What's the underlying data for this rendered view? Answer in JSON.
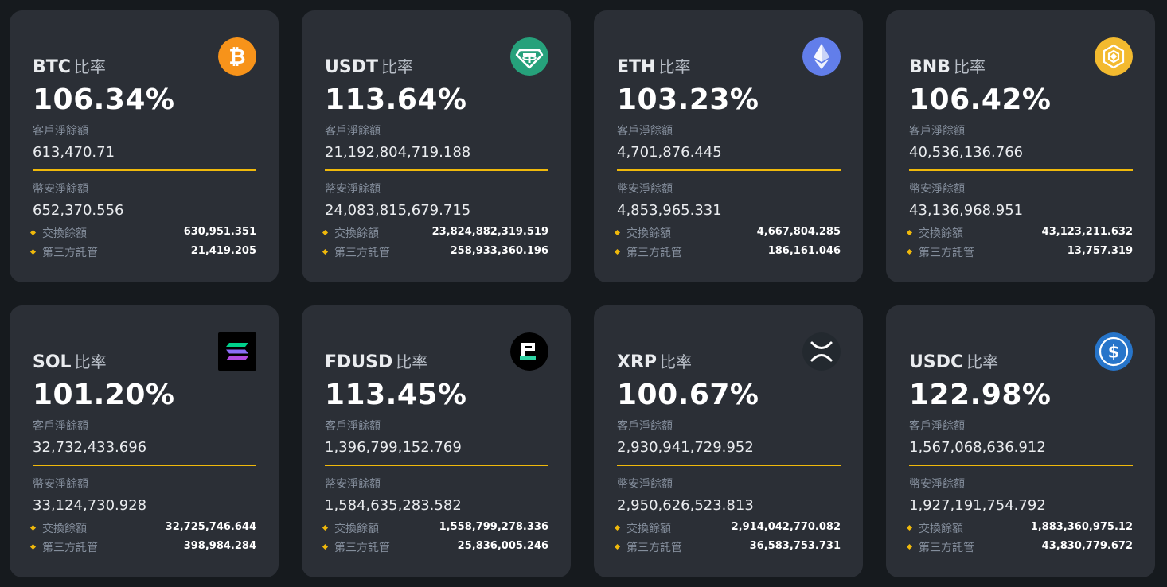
{
  "labels": {
    "ratio_suffix": "比率",
    "customer_net_balance": "客戶淨餘額",
    "binance_net_balance": "幣安淨餘額",
    "exchange_balance": "交換餘額",
    "third_party_custody": "第三方託管"
  },
  "colors": {
    "background": "#161a1e",
    "card": "#2b2f36",
    "accent": "#f0b90b"
  },
  "cards": [
    {
      "symbol": "BTC",
      "icon": "bitcoin-icon",
      "ratio": "106.34%",
      "customer_net_balance": "613,470.71",
      "binance_net_balance": "652,370.556",
      "exchange_balance": "630,951.351",
      "third_party_custody": "21,419.205"
    },
    {
      "symbol": "USDT",
      "icon": "tether-icon",
      "ratio": "113.64%",
      "customer_net_balance": "21,192,804,719.188",
      "binance_net_balance": "24,083,815,679.715",
      "exchange_balance": "23,824,882,319.519",
      "third_party_custody": "258,933,360.196"
    },
    {
      "symbol": "ETH",
      "icon": "ethereum-icon",
      "ratio": "103.23%",
      "customer_net_balance": "4,701,876.445",
      "binance_net_balance": "4,853,965.331",
      "exchange_balance": "4,667,804.285",
      "third_party_custody": "186,161.046"
    },
    {
      "symbol": "BNB",
      "icon": "bnb-icon",
      "ratio": "106.42%",
      "customer_net_balance": "40,536,136.766",
      "binance_net_balance": "43,136,968.951",
      "exchange_balance": "43,123,211.632",
      "third_party_custody": "13,757.319"
    },
    {
      "symbol": "SOL",
      "icon": "solana-icon",
      "ratio": "101.20%",
      "customer_net_balance": "32,732,433.696",
      "binance_net_balance": "33,124,730.928",
      "exchange_balance": "32,725,746.644",
      "third_party_custody": "398,984.284"
    },
    {
      "symbol": "FDUSD",
      "icon": "fdusd-icon",
      "ratio": "113.45%",
      "customer_net_balance": "1,396,799,152.769",
      "binance_net_balance": "1,584,635,283.582",
      "exchange_balance": "1,558,799,278.336",
      "third_party_custody": "25,836,005.246"
    },
    {
      "symbol": "XRP",
      "icon": "xrp-icon",
      "ratio": "100.67%",
      "customer_net_balance": "2,930,941,729.952",
      "binance_net_balance": "2,950,626,523.813",
      "exchange_balance": "2,914,042,770.082",
      "third_party_custody": "36,583,753.731"
    },
    {
      "symbol": "USDC",
      "icon": "usdc-icon",
      "ratio": "122.98%",
      "customer_net_balance": "1,567,068,636.912",
      "binance_net_balance": "1,927,191,754.792",
      "exchange_balance": "1,883,360,975.12",
      "third_party_custody": "43,830,779.672"
    }
  ]
}
